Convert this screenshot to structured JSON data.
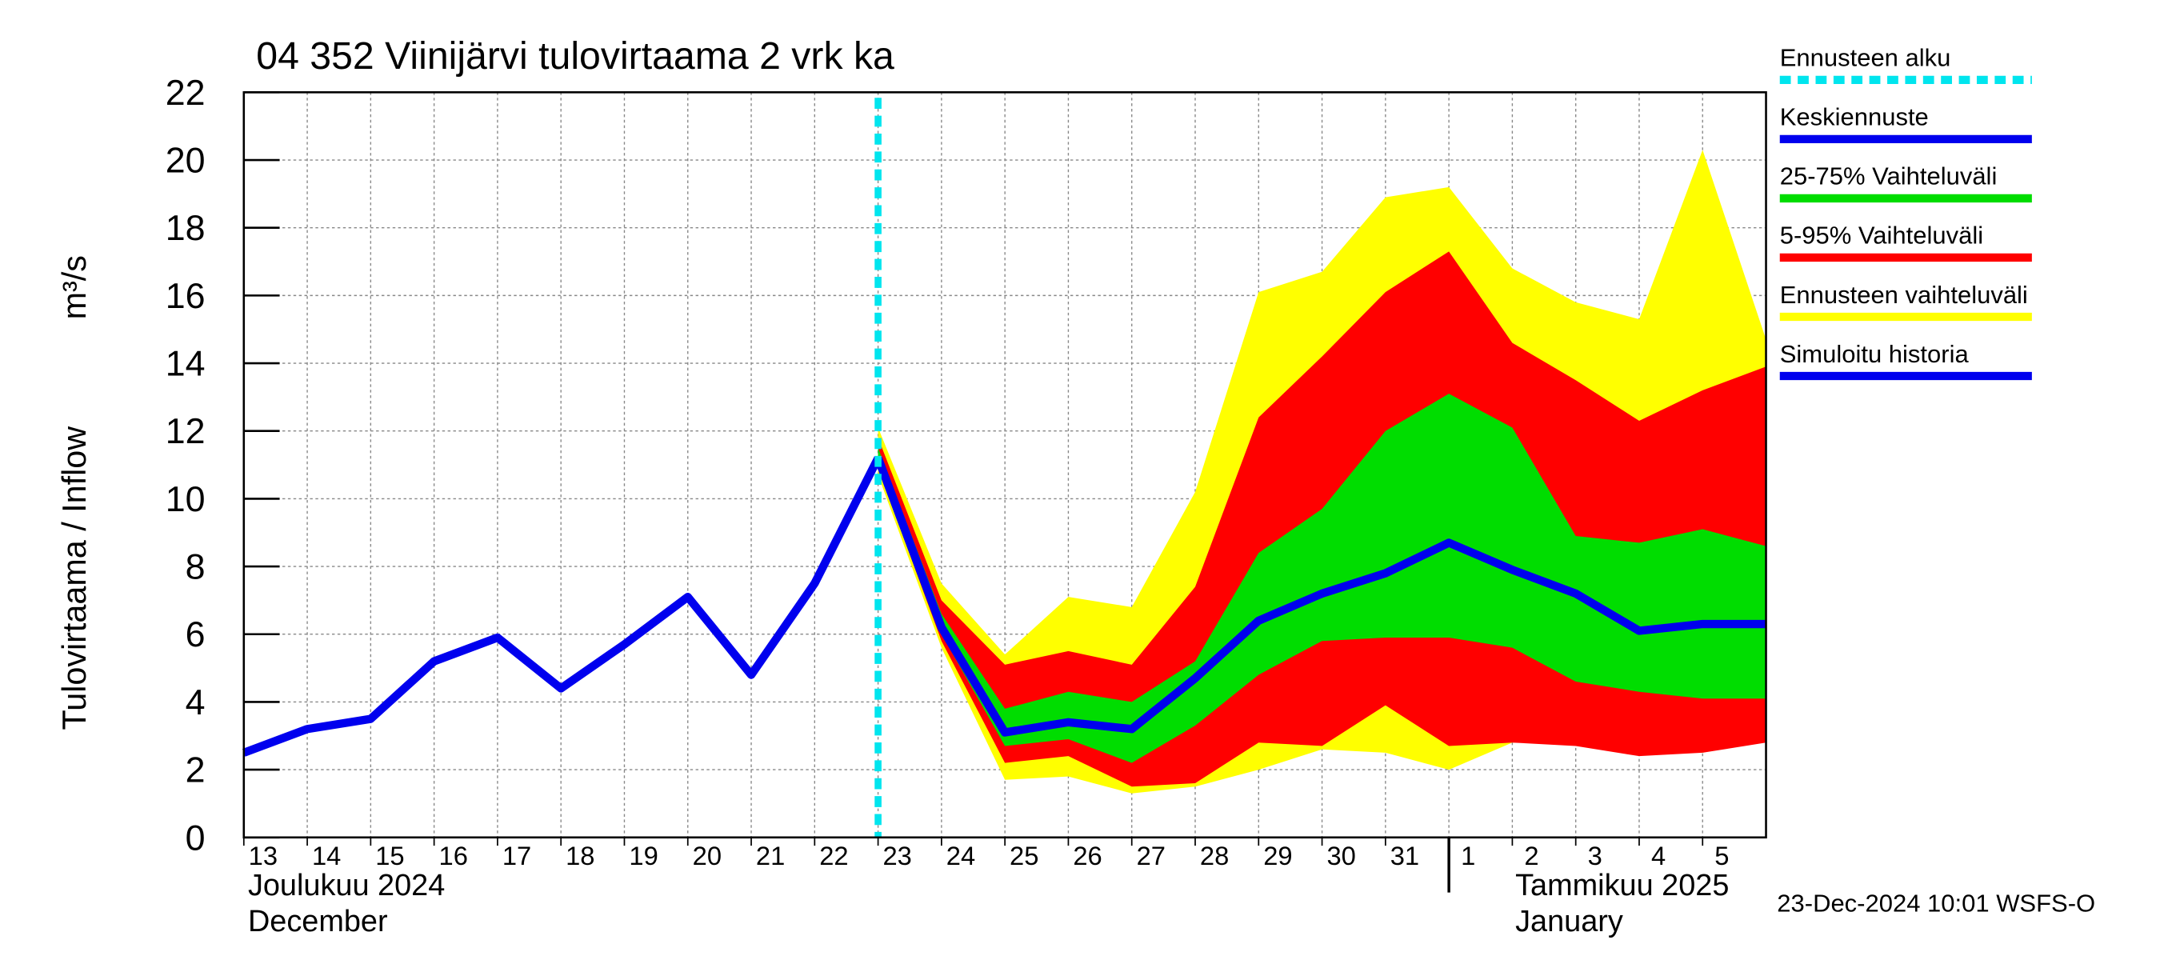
{
  "chart_data": {
    "type": "band-line",
    "title": "04 352 Viinijärvi tulovirtaama 2 vrk ka",
    "y_label": "Tulovirtaama / Inflow",
    "y_unit": "m³/s",
    "month_labels": [
      "Joulukuu  2024",
      "December",
      "Tammikuu  2025",
      "January"
    ],
    "footer": "23-Dec-2024 10:01 WSFS-O",
    "x": [
      "2024-12-13",
      "2024-12-14",
      "2024-12-15",
      "2024-12-16",
      "2024-12-17",
      "2024-12-18",
      "2024-12-19",
      "2024-12-20",
      "2024-12-21",
      "2024-12-22",
      "2024-12-23",
      "2024-12-24",
      "2024-12-25",
      "2024-12-26",
      "2024-12-27",
      "2024-12-28",
      "2024-12-29",
      "2024-12-30",
      "2024-12-31",
      "2025-01-01",
      "2025-01-02",
      "2025-01-03",
      "2025-01-04",
      "2025-01-05",
      "2025-01-06"
    ],
    "xlim": [
      "2024-12-13",
      "2025-01-06"
    ],
    "xticks": [
      {
        "value": "2024-12-13",
        "label": "13"
      },
      {
        "value": "2024-12-14",
        "label": "14"
      },
      {
        "value": "2024-12-15",
        "label": "15"
      },
      {
        "value": "2024-12-16",
        "label": "16"
      },
      {
        "value": "2024-12-17",
        "label": "17"
      },
      {
        "value": "2024-12-18",
        "label": "18"
      },
      {
        "value": "2024-12-19",
        "label": "19"
      },
      {
        "value": "2024-12-20",
        "label": "20"
      },
      {
        "value": "2024-12-21",
        "label": "21"
      },
      {
        "value": "2024-12-22",
        "label": "22"
      },
      {
        "value": "2024-12-23",
        "label": "23"
      },
      {
        "value": "2024-12-24",
        "label": "24"
      },
      {
        "value": "2024-12-25",
        "label": "25"
      },
      {
        "value": "2024-12-26",
        "label": "26"
      },
      {
        "value": "2024-12-27",
        "label": "27"
      },
      {
        "value": "2024-12-28",
        "label": "28"
      },
      {
        "value": "2024-12-29",
        "label": "29"
      },
      {
        "value": "2024-12-30",
        "label": "30"
      },
      {
        "value": "2024-12-31",
        "label": "31"
      },
      {
        "value": "2025-01-01",
        "label": "1"
      },
      {
        "value": "2025-01-02",
        "label": "2"
      },
      {
        "value": "2025-01-03",
        "label": "3"
      },
      {
        "value": "2025-01-04",
        "label": "4"
      },
      {
        "value": "2025-01-05",
        "label": "5"
      }
    ],
    "month_start": "2025-01-01",
    "ylim": [
      0,
      22
    ],
    "yticks": [
      0,
      2,
      4,
      6,
      8,
      10,
      12,
      14,
      16,
      18,
      20,
      22
    ],
    "grid": true,
    "forecast_start": {
      "name": "Ennusteen alku",
      "color": "#00e5ee",
      "x": "2024-12-23"
    },
    "bands": [
      {
        "name": "Ennusteen vaihteluväli",
        "color": "#ffff00",
        "lower": [
          null,
          null,
          null,
          null,
          null,
          null,
          null,
          null,
          null,
          null,
          10.7,
          5.6,
          1.7,
          1.8,
          1.3,
          1.5,
          2.0,
          2.6,
          2.5,
          2.0,
          2.8,
          2.8,
          2.5,
          2.5,
          2.9
        ],
        "upper": [
          null,
          null,
          null,
          null,
          null,
          null,
          null,
          null,
          null,
          null,
          12.1,
          7.5,
          5.4,
          7.1,
          6.8,
          10.2,
          16.1,
          16.7,
          18.9,
          19.2,
          16.8,
          15.8,
          15.3,
          20.3,
          14.7
        ]
      },
      {
        "name": "5-95% Vaihteluväli",
        "color": "#ff0000",
        "lower": [
          null,
          null,
          null,
          null,
          null,
          null,
          null,
          null,
          null,
          null,
          10.9,
          5.8,
          2.2,
          2.4,
          1.5,
          1.6,
          2.8,
          2.7,
          3.9,
          2.7,
          2.8,
          2.7,
          2.4,
          2.5,
          2.8
        ],
        "upper": [
          null,
          null,
          null,
          null,
          null,
          null,
          null,
          null,
          null,
          null,
          11.8,
          7.0,
          5.1,
          5.5,
          5.1,
          7.4,
          12.4,
          14.2,
          16.1,
          17.3,
          14.6,
          13.5,
          12.3,
          13.2,
          13.9
        ]
      },
      {
        "name": "25-75% Vaihteluväli",
        "color": "#00dd00",
        "lower": [
          null,
          null,
          null,
          null,
          null,
          null,
          null,
          null,
          null,
          null,
          11.1,
          6.0,
          2.7,
          2.9,
          2.2,
          3.3,
          4.8,
          5.8,
          5.9,
          5.9,
          5.6,
          4.6,
          4.3,
          4.1,
          4.1
        ],
        "upper": [
          null,
          null,
          null,
          null,
          null,
          null,
          null,
          null,
          null,
          null,
          11.5,
          6.6,
          3.8,
          4.3,
          4.0,
          5.2,
          8.4,
          9.7,
          12.0,
          13.1,
          12.1,
          8.9,
          8.7,
          9.1,
          8.6
        ]
      }
    ],
    "series": [
      {
        "name": "Simuloitu historia",
        "color": "#0000ee",
        "values": [
          2.5,
          3.2,
          3.5,
          5.2,
          5.9,
          4.4,
          5.7,
          7.1,
          4.8,
          7.5,
          11.2,
          null,
          null,
          null,
          null,
          null,
          null,
          null,
          null,
          null,
          null,
          null,
          null,
          null,
          null
        ]
      },
      {
        "name": "Keskiennuste",
        "color": "#0000ee",
        "values": [
          null,
          null,
          null,
          null,
          null,
          null,
          null,
          null,
          null,
          null,
          11.2,
          6.2,
          3.1,
          3.4,
          3.2,
          4.7,
          6.4,
          7.2,
          7.8,
          8.7,
          7.9,
          7.2,
          6.1,
          6.3,
          6.3
        ]
      }
    ]
  }
}
